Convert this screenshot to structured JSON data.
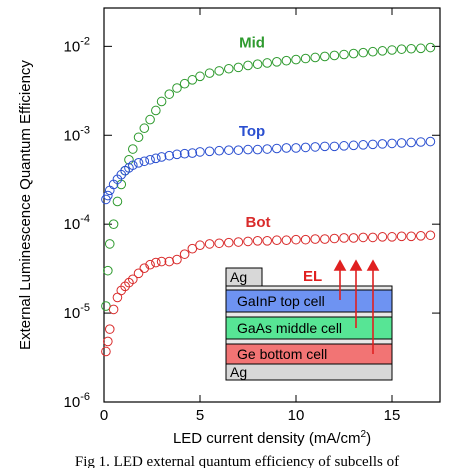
{
  "chart_data": {
    "type": "scatter",
    "x_label": [
      "LED current density (mA/cm",
      "2",
      ")"
    ],
    "y_label": "External Luminescence Quantum Efficiency",
    "xlim": [
      0,
      17.5
    ],
    "xticks": [
      0,
      5,
      10,
      15
    ],
    "ylim": [
      1e-06,
      0.027
    ],
    "log_y": true,
    "yticks": [
      {
        "value": 1e-06,
        "label": "10",
        "superscript": "-6"
      },
      {
        "value": 1e-05,
        "label": "10",
        "superscript": "-5"
      },
      {
        "value": 0.0001,
        "label": "10",
        "superscript": "-4"
      },
      {
        "value": 0.001,
        "label": "10",
        "superscript": "-3"
      },
      {
        "value": 0.01,
        "label": "10",
        "superscript": "-2"
      }
    ],
    "x": [
      0.1,
      0.2,
      0.3,
      0.5,
      0.7,
      0.9,
      1.1,
      1.3,
      1.5,
      1.8,
      2.1,
      2.4,
      2.7,
      3.0,
      3.4,
      3.8,
      4.2,
      4.6,
      5.0,
      5.5,
      6.0,
      6.5,
      7.0,
      7.5,
      8.0,
      8.5,
      9.0,
      9.5,
      10,
      10.5,
      11,
      11.5,
      12,
      12.5,
      13,
      13.5,
      14,
      14.5,
      15,
      15.5,
      16,
      16.5,
      17
    ],
    "series": [
      {
        "name": "Mid",
        "color": "#2e9a2e",
        "values": [
          1.2e-05,
          3e-05,
          6e-05,
          0.0001,
          0.00018,
          0.00028,
          0.0004,
          0.00053,
          0.0007,
          0.00095,
          0.0012,
          0.0015,
          0.0019,
          0.0024,
          0.0029,
          0.0034,
          0.0038,
          0.0042,
          0.0046,
          0.005,
          0.0053,
          0.0056,
          0.0058,
          0.0061,
          0.0063,
          0.0065,
          0.0067,
          0.0069,
          0.0071,
          0.0073,
          0.0075,
          0.0077,
          0.0079,
          0.0081,
          0.0083,
          0.0085,
          0.0087,
          0.0089,
          0.0091,
          0.0093,
          0.0094,
          0.0095,
          0.0097
        ]
      },
      {
        "name": "Top",
        "color": "#2a4fd0",
        "values": [
          0.00019,
          0.00021,
          0.00024,
          0.00028,
          0.00032,
          0.00036,
          0.0004,
          0.00043,
          0.00046,
          0.00049,
          0.00051,
          0.00053,
          0.00055,
          0.00057,
          0.00059,
          0.00061,
          0.00062,
          0.00063,
          0.00065,
          0.00066,
          0.00067,
          0.00068,
          0.00068,
          0.00069,
          0.00069,
          0.0007,
          0.00071,
          0.00072,
          0.00072,
          0.00073,
          0.00074,
          0.00075,
          0.00075,
          0.00076,
          0.00077,
          0.00078,
          0.00079,
          0.0008,
          0.00081,
          0.00082,
          0.00083,
          0.00084,
          0.00085
        ]
      },
      {
        "name": "Bot",
        "color": "#d92b2b",
        "values": [
          3.7e-06,
          4.8e-06,
          6.6e-06,
          1.1e-05,
          1.5e-05,
          1.8e-05,
          2e-05,
          2.2e-05,
          2.4e-05,
          2.8e-05,
          3.2e-05,
          3.5e-05,
          3.7e-05,
          3.8e-05,
          3.8e-05,
          4e-05,
          4.6e-05,
          5.3e-05,
          5.8e-05,
          6e-05,
          6.1e-05,
          6.2e-05,
          6.3e-05,
          6.4e-05,
          6.5e-05,
          6.5e-05,
          6.6e-05,
          6.6e-05,
          6.7e-05,
          6.7e-05,
          6.8e-05,
          6.8e-05,
          6.9e-05,
          7e-05,
          7e-05,
          7.1e-05,
          7.1e-05,
          7.2e-05,
          7.2e-05,
          7.3e-05,
          7.3e-05,
          7.4e-05,
          7.5e-05
        ]
      }
    ],
    "inset": {
      "top_contact": "Ag",
      "top_cell": "GaInP top cell",
      "middle_cell": "GaAs middle cell",
      "bottom_cell": "Ge bottom cell",
      "bottom_contact": "Ag",
      "emission": "EL"
    },
    "caption": "Fig 1.   LED external quantum efficiency of subcells of"
  }
}
